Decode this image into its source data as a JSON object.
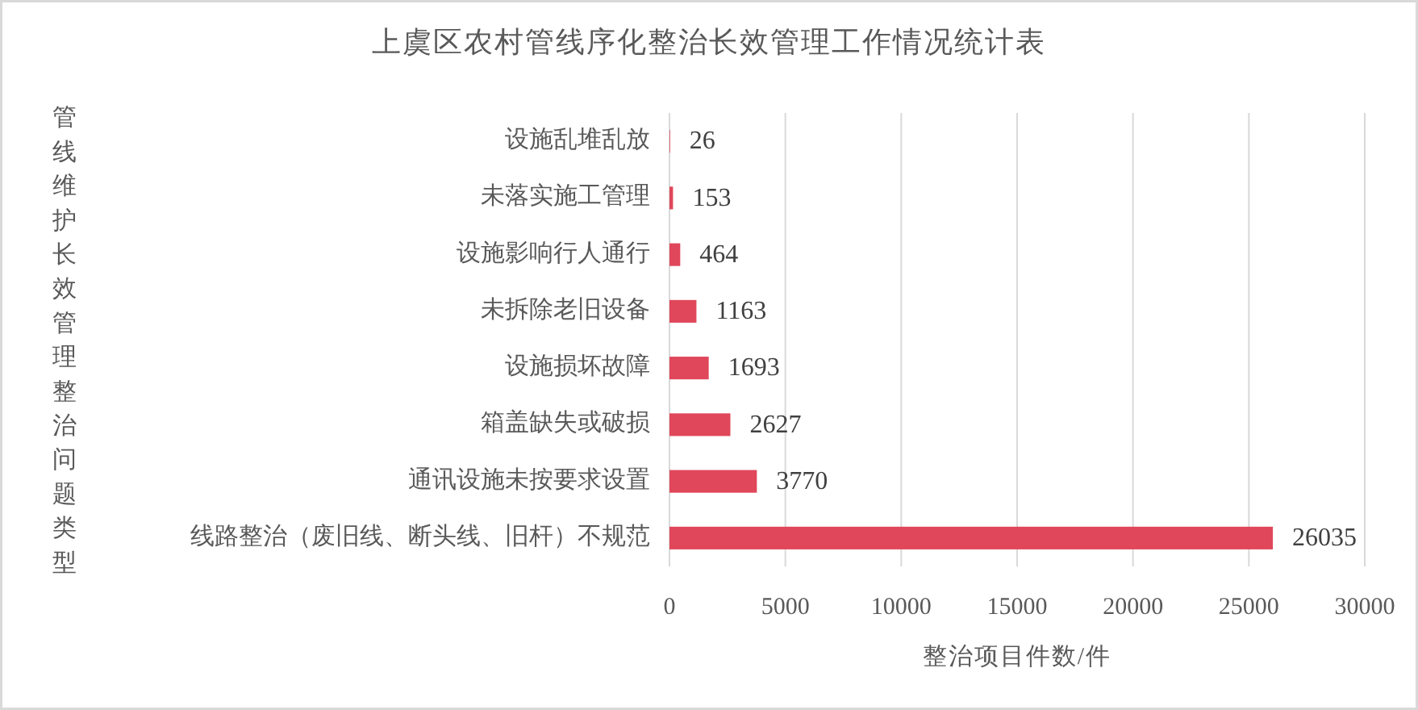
{
  "chart_data": {
    "type": "bar",
    "orientation": "horizontal",
    "title": "上虞区农村管线序化整治长效管理工作情况统计表",
    "xlabel": "整治项目件数/件",
    "ylabel": "管线维护长效管理整治问题类型",
    "categories": [
      "设施乱堆乱放",
      "未落实施工管理",
      "设施影响行人通行",
      "未拆除老旧设备",
      "设施损坏故障",
      "箱盖缺失或破损",
      "通讯设施未按要求设置",
      "线路整治（废旧线、断头线、旧杆）不规范"
    ],
    "values": [
      26,
      153,
      464,
      1163,
      1693,
      2627,
      3770,
      26035
    ],
    "color": "#e0475a",
    "xlim": [
      0,
      30000
    ],
    "xticks": [
      0,
      5000,
      10000,
      15000,
      20000,
      25000,
      30000
    ],
    "grid": "x",
    "data_labels": true
  }
}
